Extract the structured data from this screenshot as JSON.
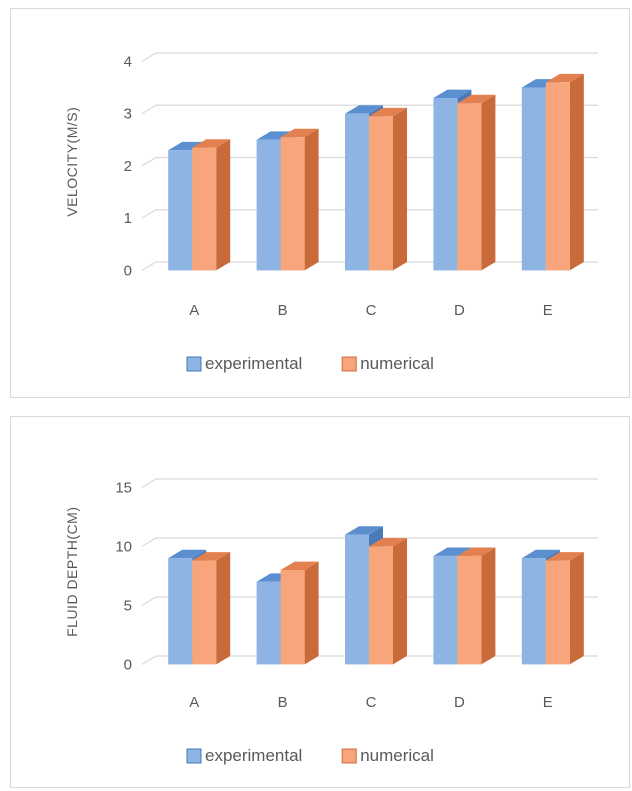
{
  "colors": {
    "experimental_front": "#8db4e2",
    "experimental_top": "#5b8fd0",
    "experimental_side": "#4a7ab8",
    "numerical_front": "#f8a57c",
    "numerical_top": "#e2814f",
    "numerical_side": "#c86a3a",
    "grid": "#d9d9d9",
    "text": "#595959"
  },
  "chart_data": [
    {
      "type": "bar",
      "style": "3d-clustered-column",
      "categories": [
        "A",
        "B",
        "C",
        "D",
        "E"
      ],
      "series": [
        {
          "name": "experimental",
          "values": [
            2.3,
            2.5,
            3.0,
            3.3,
            3.5
          ]
        },
        {
          "name": "numerical",
          "values": [
            2.35,
            2.55,
            2.95,
            3.2,
            3.6
          ]
        }
      ],
      "xlabel": "",
      "ylabel": "VELOCITY(M/S)",
      "ylim": [
        0,
        4
      ],
      "yticks": [
        0,
        1,
        2,
        3,
        4
      ],
      "grid": true,
      "legend": "bottom"
    },
    {
      "type": "bar",
      "style": "3d-clustered-column",
      "categories": [
        "A",
        "B",
        "C",
        "D",
        "E"
      ],
      "series": [
        {
          "name": "experimental",
          "values": [
            9.0,
            7.0,
            11.0,
            9.2,
            9.0
          ]
        },
        {
          "name": "numerical",
          "values": [
            8.8,
            8.0,
            10.0,
            9.2,
            8.8
          ]
        }
      ],
      "xlabel": "",
      "ylabel": "FLUID DEPTH(CM)",
      "ylim": [
        0,
        15
      ],
      "yticks": [
        0,
        5,
        10,
        15
      ],
      "grid": true,
      "legend": "bottom"
    }
  ]
}
